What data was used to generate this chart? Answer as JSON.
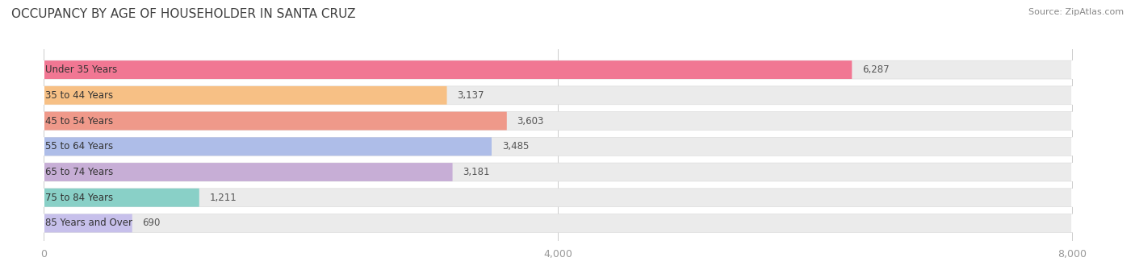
{
  "title": "OCCUPANCY BY AGE OF HOUSEHOLDER IN SANTA CRUZ",
  "source": "Source: ZipAtlas.com",
  "categories": [
    "Under 35 Years",
    "35 to 44 Years",
    "45 to 54 Years",
    "55 to 64 Years",
    "65 to 74 Years",
    "75 to 84 Years",
    "85 Years and Over"
  ],
  "values": [
    6287,
    3137,
    3603,
    3485,
    3181,
    1211,
    690
  ],
  "bar_colors": [
    "#F26B8A",
    "#F9BC7A",
    "#F09080",
    "#A8B8E8",
    "#C4A8D4",
    "#7ECEC4",
    "#C4BCEC"
  ],
  "xlim": [
    0,
    8000
  ],
  "xticks": [
    0,
    4000,
    8000
  ],
  "background_color": "#ffffff",
  "bar_background_color": "#ebebeb",
  "title_fontsize": 11,
  "source_fontsize": 8,
  "label_fontsize": 8.5,
  "value_fontsize": 8.5
}
